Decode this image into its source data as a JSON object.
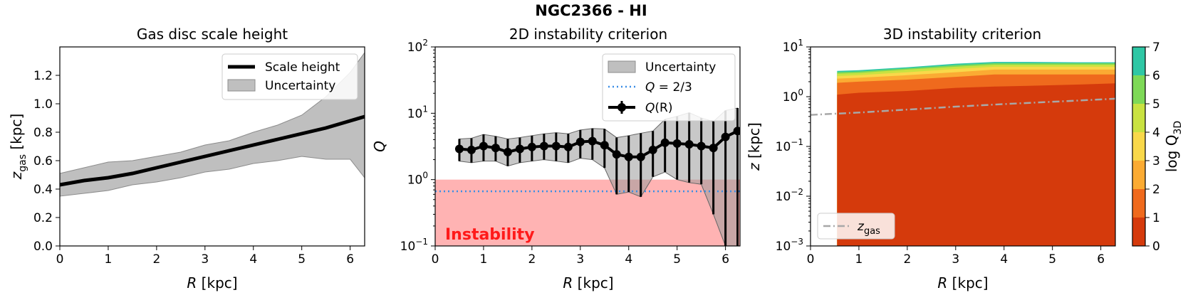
{
  "suptitle": "NGC2366 - HI",
  "chart_data": [
    {
      "type": "line",
      "title": "Gas disc scale height",
      "xlabel_main": "R",
      "xlabel_unit": " [kpc]",
      "ylabel_main": "z",
      "ylabel_sub": "gas",
      "ylabel_unit": " [kpc]",
      "xlim": [
        0,
        6.3
      ],
      "ylim": [
        0,
        1.4
      ],
      "xticks": [
        "0",
        "1",
        "2",
        "3",
        "4",
        "5",
        "6"
      ],
      "yticks": [
        "0.0",
        "0.2",
        "0.4",
        "0.6",
        "0.8",
        "1.0",
        "1.2"
      ],
      "series": [
        {
          "name": "Scale height",
          "x": [
            0,
            0.5,
            1,
            1.5,
            2,
            2.5,
            3,
            3.5,
            4,
            4.5,
            5,
            5.5,
            6,
            6.3
          ],
          "y": [
            0.43,
            0.46,
            0.48,
            0.51,
            0.55,
            0.59,
            0.63,
            0.67,
            0.71,
            0.75,
            0.79,
            0.83,
            0.88,
            0.91
          ]
        },
        {
          "name": "Uncertainty",
          "x": [
            0,
            0.5,
            1,
            1.5,
            2,
            2.5,
            3,
            3.5,
            4,
            4.5,
            5,
            5.5,
            6,
            6.3
          ],
          "upper": [
            0.51,
            0.55,
            0.59,
            0.6,
            0.63,
            0.66,
            0.71,
            0.74,
            0.8,
            0.85,
            0.92,
            1.05,
            1.22,
            1.36
          ],
          "lower": [
            0.35,
            0.37,
            0.39,
            0.43,
            0.45,
            0.48,
            0.52,
            0.54,
            0.58,
            0.6,
            0.63,
            0.61,
            0.61,
            0.48
          ]
        }
      ],
      "legend": [
        "Scale height",
        "Uncertainty"
      ],
      "legend_position": "top-right"
    },
    {
      "type": "line",
      "title": "2D instability criterion",
      "xlabel_main": "R",
      "xlabel_unit": " [kpc]",
      "ylabel_main": "Q",
      "yscale": "log",
      "xlim": [
        0,
        6.3
      ],
      "ylim": [
        0.1,
        100
      ],
      "xticks": [
        "0",
        "1",
        "2",
        "3",
        "4",
        "5",
        "6"
      ],
      "yticks": [
        {
          "base": "10",
          "exp": "−1"
        },
        {
          "base": "10",
          "exp": "0"
        },
        {
          "base": "10",
          "exp": "1"
        },
        {
          "base": "10",
          "exp": "2"
        }
      ],
      "instability_label": "Instability",
      "instability_threshold": 1.0,
      "threshold_line": {
        "label_main": "Q",
        "label_rest": " = 2/3",
        "value": 0.6667
      },
      "series": [
        {
          "name": "Q(R)",
          "x": [
            0.5,
            0.75,
            1.0,
            1.25,
            1.5,
            1.75,
            2.0,
            2.25,
            2.5,
            2.75,
            3.0,
            3.25,
            3.5,
            3.75,
            4.0,
            4.25,
            4.5,
            4.75,
            5.0,
            5.25,
            5.5,
            5.75,
            6.0,
            6.25
          ],
          "y": [
            2.9,
            2.8,
            3.2,
            3.0,
            2.6,
            2.9,
            3.1,
            3.2,
            3.2,
            3.1,
            3.7,
            3.8,
            3.3,
            2.4,
            2.2,
            2.2,
            2.8,
            3.6,
            3.5,
            3.4,
            3.2,
            3.0,
            4.4,
            5.4
          ],
          "upper": [
            4.1,
            4.2,
            4.8,
            4.5,
            4.1,
            4.3,
            4.6,
            4.9,
            5.1,
            4.9,
            5.6,
            5.9,
            5.8,
            4.3,
            4.6,
            5.0,
            5.4,
            8.1,
            9.0,
            10.2,
            8.5,
            7.5,
            11.0,
            12.0
          ],
          "lower": [
            1.9,
            1.8,
            1.9,
            1.9,
            1.6,
            1.8,
            1.9,
            2.0,
            1.9,
            1.8,
            2.1,
            2.0,
            1.5,
            0.6,
            0.65,
            0.55,
            1.1,
            1.3,
            1.0,
            0.9,
            0.85,
            0.3,
            0.1,
            0.1
          ]
        }
      ],
      "legend": [
        {
          "label_main": "Uncertainty",
          "label_rest": ""
        },
        {
          "label_main": "Q",
          "label_rest": " = 2/3"
        },
        {
          "label_main": "Q",
          "label_rest": "(R)"
        }
      ],
      "legend_position": "top-right"
    },
    {
      "type": "area",
      "title": "3D instability criterion",
      "xlabel_main": "R",
      "xlabel_unit": " [kpc]",
      "ylabel_main": "z",
      "ylabel_unit": " [kpc]",
      "yscale": "log",
      "xlim": [
        0,
        6.3
      ],
      "ylim": [
        0.001,
        10
      ],
      "xticks": [
        "0",
        "1",
        "2",
        "3",
        "4",
        "5",
        "6"
      ],
      "yticks": [
        {
          "base": "10",
          "exp": "−3"
        },
        {
          "base": "10",
          "exp": "−2"
        },
        {
          "base": "10",
          "exp": "−1"
        },
        {
          "base": "10",
          "exp": "0"
        },
        {
          "base": "10",
          "exp": "1"
        }
      ],
      "contour_x": [
        0.55,
        1.0,
        2.0,
        3.0,
        3.8,
        4.5,
        5.5,
        6.3
      ],
      "contour_levels": [
        {
          "range": "0-1",
          "color": "#d53a0c",
          "top": [
            1.1,
            1.2,
            1.3,
            1.5,
            1.6,
            1.65,
            1.75,
            1.85
          ]
        },
        {
          "range": "1-2",
          "color": "#ef6a1d",
          "top": [
            1.9,
            2.0,
            2.2,
            2.5,
            2.8,
            2.8,
            2.8,
            2.8
          ]
        },
        {
          "range": "2-3",
          "color": "#fbab33",
          "top": [
            2.3,
            2.4,
            2.7,
            3.1,
            3.5,
            3.5,
            3.5,
            3.5
          ]
        },
        {
          "range": "3-4",
          "color": "#f9d84a",
          "top": [
            2.6,
            2.7,
            3.1,
            3.6,
            4.0,
            4.0,
            4.0,
            4.0
          ]
        },
        {
          "range": "4-5",
          "color": "#c9e241",
          "top": [
            2.9,
            3.0,
            3.5,
            4.0,
            4.4,
            4.4,
            4.4,
            4.4
          ]
        },
        {
          "range": "5-6",
          "color": "#7ed957",
          "top": [
            3.1,
            3.2,
            3.7,
            4.3,
            4.7,
            4.7,
            4.7,
            4.7
          ]
        },
        {
          "range": "6-7",
          "color": "#2fc7a5",
          "top": [
            3.3,
            3.4,
            3.9,
            4.6,
            5.0,
            5.0,
            4.9,
            4.9
          ]
        }
      ],
      "zgas_line": {
        "x": [
          0,
          1,
          2,
          3,
          4,
          5,
          6,
          6.3
        ],
        "y": [
          0.43,
          0.48,
          0.55,
          0.63,
          0.71,
          0.79,
          0.88,
          0.91
        ]
      },
      "legend": [
        {
          "label_main": "z",
          "label_sub": "gas"
        }
      ],
      "legend_position": "bottom-left",
      "colorbar": {
        "label_main": "log Q",
        "label_sub": "3D",
        "ticks": [
          "0",
          "1",
          "2",
          "3",
          "4",
          "5",
          "6",
          "7"
        ],
        "colors": [
          "#d53a0c",
          "#ef6a1d",
          "#fbab33",
          "#f9d84a",
          "#c9e241",
          "#7ed957",
          "#2fc7a5"
        ]
      }
    }
  ]
}
